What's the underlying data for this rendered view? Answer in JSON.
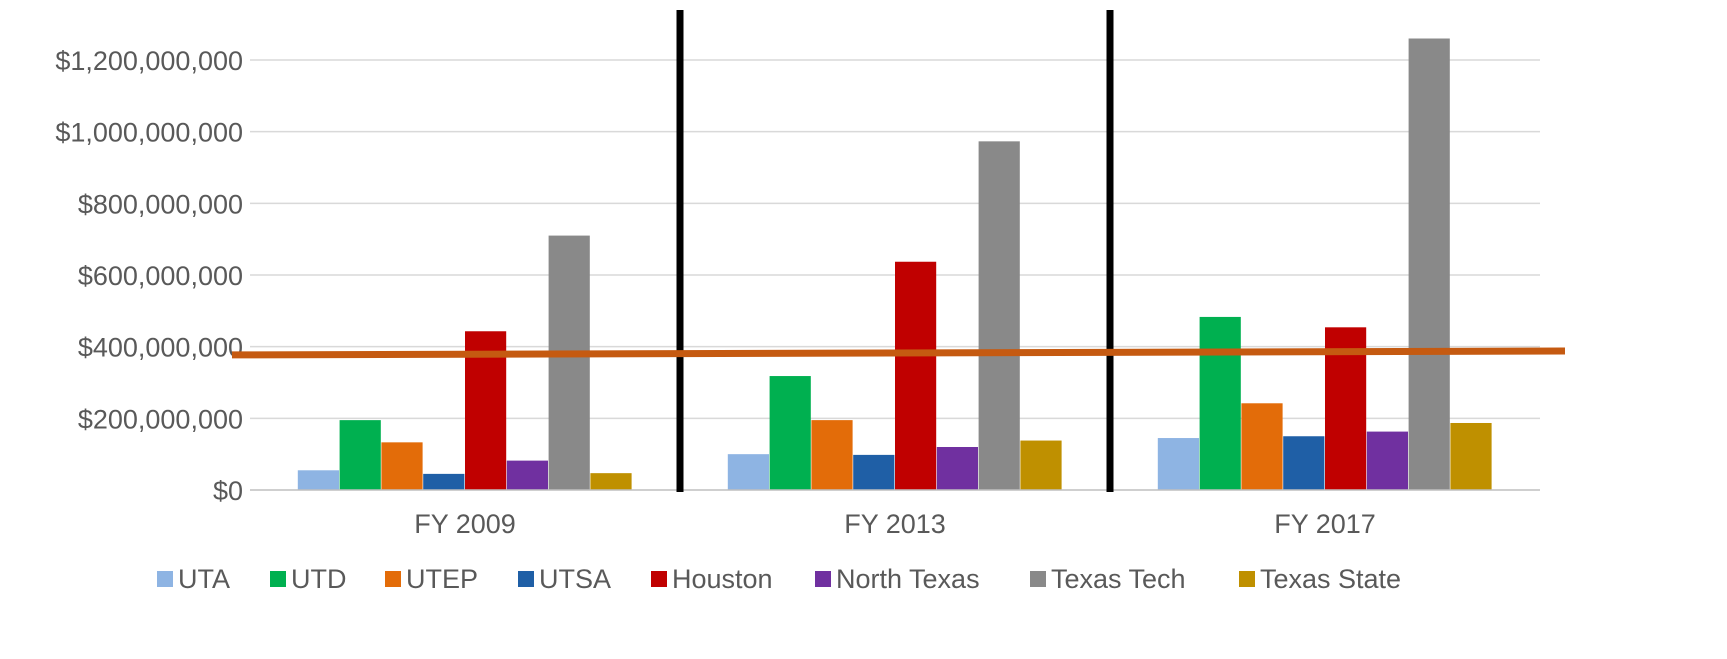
{
  "chart_data": {
    "type": "bar",
    "categories": [
      "FY 2009",
      "FY 2013",
      "FY 2017"
    ],
    "series": [
      {
        "name": "UTA",
        "color": "#8EB4E3",
        "values": [
          55000000,
          100000000,
          145000000
        ]
      },
      {
        "name": "UTD",
        "color": "#00B050",
        "values": [
          195000000,
          318000000,
          483000000
        ]
      },
      {
        "name": "UTEP",
        "color": "#E36C09",
        "values": [
          133000000,
          195000000,
          242000000
        ]
      },
      {
        "name": "UTSA",
        "color": "#1F5FA6",
        "values": [
          45000000,
          98000000,
          150000000
        ]
      },
      {
        "name": "Houston",
        "color": "#C00000",
        "values": [
          443000000,
          637000000,
          454000000
        ]
      },
      {
        "name": "North Texas",
        "color": "#7030A0",
        "values": [
          82000000,
          120000000,
          163000000
        ]
      },
      {
        "name": "Texas Tech",
        "color": "#898989",
        "values": [
          710000000,
          973000000,
          1260000000
        ]
      },
      {
        "name": "Texas State",
        "color": "#BF9000",
        "values": [
          47000000,
          138000000,
          187000000
        ]
      }
    ],
    "y_ticks": [
      "$0",
      "$200,000,000",
      "$400,000,000",
      "$600,000,000",
      "$800,000,000",
      "$1,000,000,000",
      "$1,200,000,000"
    ],
    "ylim": [
      0,
      1200000000
    ],
    "title": "",
    "xlabel": "",
    "ylabel": "",
    "grid": true,
    "legend_position": "bottom",
    "reference_line": {
      "color": "#C55A11",
      "start_value": 377000000,
      "end_value": 388000000
    },
    "period_separators": {
      "color": "#000000",
      "positions": [
        "between FY 2009 and FY 2013",
        "between FY 2013 and FY 2017"
      ]
    }
  }
}
